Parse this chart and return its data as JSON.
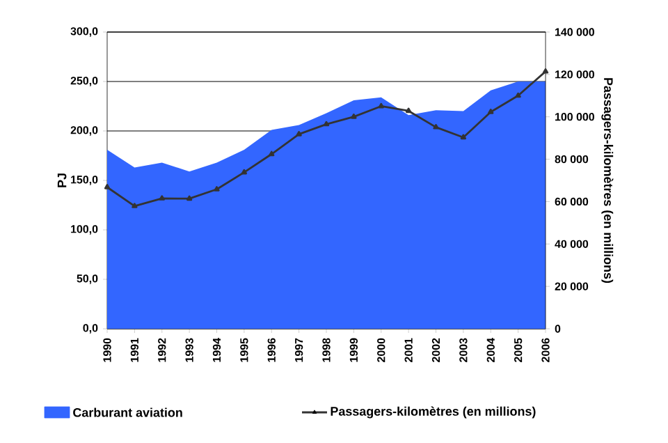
{
  "chart_data": {
    "type": "area",
    "categories": [
      "1990",
      "1991",
      "1992",
      "1993",
      "1994",
      "1995",
      "1996",
      "1997",
      "1998",
      "1999",
      "2000",
      "2001",
      "2002",
      "2003",
      "2004",
      "2005",
      "2006"
    ],
    "series": [
      {
        "name": "Carburant aviation",
        "color": "#3366ff",
        "values": [
          181,
          163,
          168,
          159,
          168,
          181,
          201,
          206,
          218,
          231,
          234,
          216,
          221,
          220,
          241,
          250,
          250
        ]
      },
      {
        "name": "Passagers-kilomètres (en millions)",
        "type": "line",
        "axis": "y2",
        "color": "#333333",
        "marker": "triangle",
        "values": [
          66800,
          57900,
          61500,
          61400,
          65800,
          73800,
          82400,
          91800,
          96500,
          100000,
          105000,
          102800,
          95100,
          90300,
          102300,
          110000,
          121400
        ]
      }
    ],
    "ylabel": "PJ",
    "y2label": "Passagers-kilomètres (en millions)",
    "ylim": [
      0,
      300
    ],
    "yticks": [
      {
        "value": 0,
        "label": "0,0"
      },
      {
        "value": 50,
        "label": "50,0"
      },
      {
        "value": 100,
        "label": "100,0"
      },
      {
        "value": 150,
        "label": "150,0"
      },
      {
        "value": 200,
        "label": "200,0"
      },
      {
        "value": 250,
        "label": "250,0"
      },
      {
        "value": 300,
        "label": "300,0"
      }
    ],
    "y2lim": [
      0,
      140000
    ],
    "y2ticks": [
      0,
      {
        "value": 20000,
        "label": "20 000"
      },
      {
        "value": 40000,
        "label": "40 000"
      },
      {
        "value": 60000,
        "label": "60 000"
      },
      {
        "value": 80000,
        "label": "80 000"
      },
      {
        "value": 100000,
        "label": "100 000"
      },
      {
        "value": 120000,
        "label": "120 000"
      },
      {
        "value": 140000,
        "label": "140 000"
      }
    ],
    "grid": "y",
    "legend": "bottom",
    "line_style": "solid"
  }
}
